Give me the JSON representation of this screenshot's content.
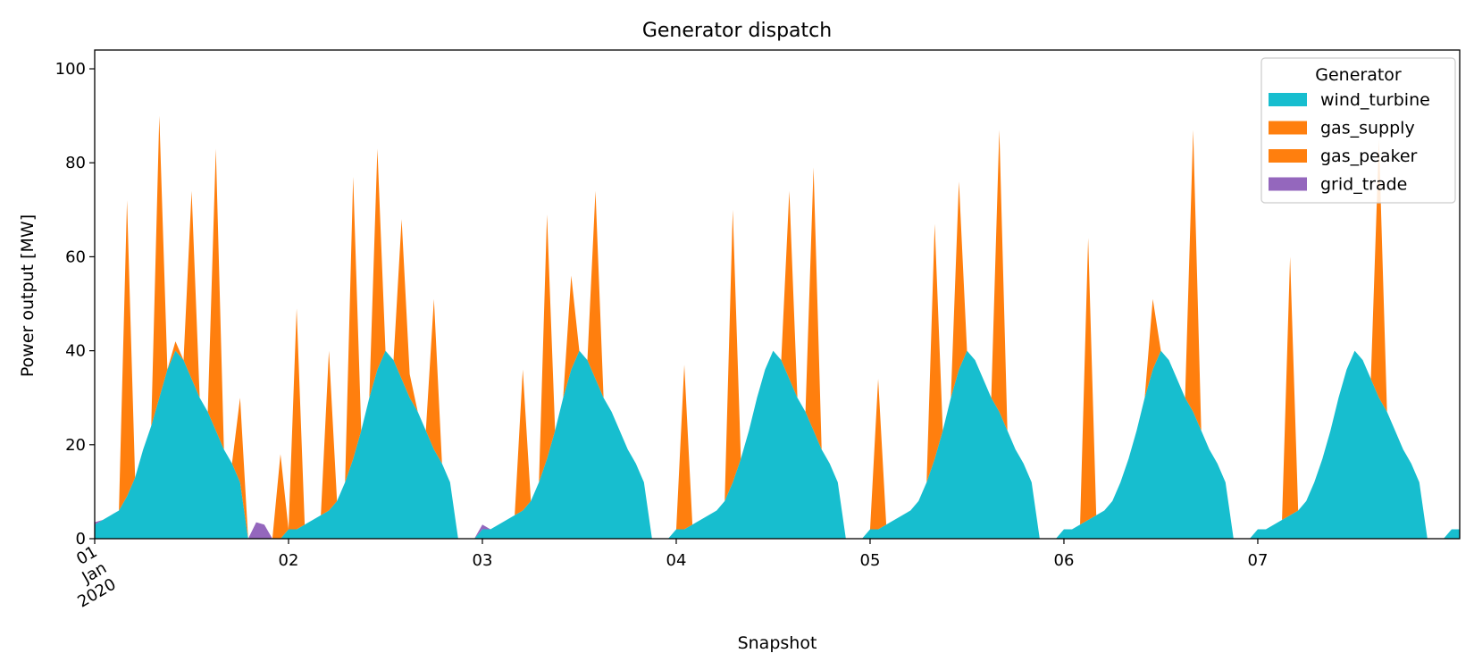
{
  "chart_data": {
    "type": "area",
    "stacked": true,
    "title": "Generator dispatch",
    "xlabel": "Snapshot",
    "ylabel": "Power output [MW]",
    "ylim": [
      0,
      104
    ],
    "yticks": [
      0,
      20,
      40,
      60,
      80,
      100
    ],
    "xticks": [
      {
        "hour": 0,
        "label": "01\nJan\n2020"
      },
      {
        "hour": 24,
        "label": "02"
      },
      {
        "hour": 48,
        "label": "03"
      },
      {
        "hour": 72,
        "label": "04"
      },
      {
        "hour": 96,
        "label": "05"
      },
      {
        "hour": 120,
        "label": "06"
      },
      {
        "hour": 144,
        "label": "07"
      }
    ],
    "x_start": "2020-01-01 00:00",
    "x_end": "2020-01-07 23:00",
    "x_step_hours": 1,
    "grid": false,
    "legend": {
      "title": "Generator",
      "position": "top-right"
    },
    "series": [
      {
        "name": "wind_turbine",
        "color": "#17becf",
        "values": [
          3,
          4,
          5,
          6,
          9,
          13,
          19,
          24,
          30,
          36,
          40,
          38,
          34,
          30,
          27,
          23,
          19,
          16,
          12,
          0,
          0,
          0,
          0,
          0,
          2,
          2,
          3,
          4,
          5,
          6,
          8,
          12,
          17,
          23,
          30,
          36,
          40,
          38,
          34,
          30,
          27,
          23,
          19,
          16,
          12,
          0,
          0,
          0,
          2,
          2,
          3,
          4,
          5,
          6,
          8,
          12,
          17,
          23,
          30,
          36,
          40,
          38,
          34,
          30,
          27,
          23,
          19,
          16,
          12,
          0,
          0,
          0,
          2,
          2,
          3,
          4,
          5,
          6,
          8,
          12,
          17,
          23,
          30,
          36,
          40,
          38,
          34,
          30,
          27,
          23,
          19,
          16,
          12,
          0,
          0,
          0,
          2,
          2,
          3,
          4,
          5,
          6,
          8,
          12,
          17,
          23,
          30,
          36,
          40,
          38,
          34,
          30,
          27,
          23,
          19,
          16,
          12,
          0,
          0,
          0,
          2,
          2,
          3,
          4,
          5,
          6,
          8,
          12,
          17,
          23,
          30,
          36,
          40,
          38,
          34,
          30,
          27,
          23,
          19,
          16,
          12,
          0,
          0,
          0,
          2,
          2,
          3,
          4,
          5,
          6,
          8,
          12,
          17,
          23,
          30,
          36,
          40,
          38,
          34,
          30,
          27,
          23,
          19,
          16,
          12,
          0,
          0,
          0,
          2,
          2
        ]
      },
      {
        "name": "gas_supply",
        "color": "#ff7f0e",
        "values": [
          0,
          0,
          0,
          0,
          0,
          0,
          0,
          0,
          0,
          0,
          0,
          0,
          0,
          0,
          0,
          0,
          0,
          0,
          0,
          0,
          0,
          0,
          0,
          0,
          0,
          0,
          0,
          0,
          0,
          0,
          0,
          0,
          0,
          0,
          0,
          0,
          0,
          0,
          0,
          0,
          0,
          0,
          0,
          0,
          0,
          0,
          0,
          0,
          0,
          0,
          0,
          0,
          0,
          0,
          0,
          0,
          0,
          0,
          0,
          0,
          0,
          0,
          0,
          0,
          0,
          0,
          0,
          0,
          0,
          0,
          0,
          0,
          0,
          0,
          0,
          0,
          0,
          0,
          0,
          0,
          0,
          0,
          0,
          0,
          0,
          0,
          0,
          0,
          0,
          0,
          0,
          0,
          0,
          0,
          0,
          0,
          0,
          0,
          0,
          0,
          0,
          0,
          0,
          0,
          0,
          0,
          0,
          0,
          0,
          0,
          0,
          0,
          0,
          0,
          0,
          0,
          0,
          0,
          0,
          0,
          0,
          0,
          0,
          0,
          0,
          0,
          0,
          0,
          0,
          0,
          0,
          0,
          0,
          0,
          0,
          0,
          0,
          0,
          0,
          0,
          0,
          0,
          0,
          0,
          0,
          0,
          0,
          0,
          0,
          0,
          0,
          0,
          0,
          0,
          0,
          0,
          0,
          0,
          0,
          0,
          0,
          0,
          0,
          0,
          0,
          0,
          0,
          0
        ]
      },
      {
        "name": "gas_peaker",
        "color": "#ff7f0e",
        "values": [
          0,
          0,
          0,
          0,
          63,
          0,
          0,
          0,
          60,
          0,
          2,
          0,
          40,
          0,
          0,
          60,
          0,
          0,
          18,
          0,
          0,
          0,
          0,
          18,
          0,
          47,
          0,
          0,
          0,
          34,
          0,
          0,
          60,
          0,
          0,
          47,
          0,
          0,
          34,
          5,
          0,
          0,
          32,
          0,
          0,
          0,
          0,
          0,
          0,
          0,
          0,
          0,
          0,
          30,
          0,
          0,
          52,
          0,
          0,
          20,
          0,
          0,
          40,
          0,
          0,
          0,
          0,
          0,
          0,
          0,
          0,
          0,
          0,
          35,
          0,
          0,
          0,
          0,
          0,
          58,
          0,
          0,
          0,
          0,
          0,
          0,
          40,
          0,
          0,
          56,
          0,
          0,
          0,
          0,
          0,
          0,
          0,
          32,
          0,
          0,
          0,
          0,
          0,
          0,
          50,
          0,
          0,
          40,
          0,
          0,
          0,
          0,
          60,
          0,
          0,
          0,
          0,
          0,
          0,
          0,
          0,
          0,
          0,
          60,
          0,
          0,
          0,
          0,
          0,
          0,
          0,
          15,
          0,
          0,
          0,
          0,
          60,
          0,
          0,
          0,
          0,
          0,
          0,
          0,
          0,
          0,
          0,
          0,
          55,
          0,
          0,
          0,
          0,
          0,
          0,
          0,
          0,
          0,
          0,
          55,
          0,
          0,
          0,
          0,
          0,
          0,
          0
        ]
      },
      {
        "name": "grid_trade",
        "color": "#9467bd",
        "values": [
          0.5,
          0,
          0,
          0,
          0,
          0,
          0,
          0,
          0,
          0,
          0,
          0,
          0,
          0,
          0,
          0,
          0,
          0,
          0,
          0,
          3.5,
          3,
          0,
          0,
          0,
          0,
          0,
          0,
          0,
          0,
          0,
          0,
          0,
          0,
          0,
          0,
          0,
          0,
          0,
          0,
          0,
          0,
          0,
          0,
          0,
          0,
          0,
          0,
          1,
          0,
          0,
          0,
          0,
          0,
          0,
          0,
          0,
          0,
          0,
          0,
          0,
          0,
          0,
          0,
          0,
          0,
          0,
          0,
          0,
          0,
          0,
          0,
          0,
          0,
          0,
          0,
          0,
          0,
          0,
          0,
          0,
          0,
          0,
          0,
          0,
          0,
          0,
          0,
          0,
          0,
          0,
          0,
          0,
          0,
          0,
          0,
          0,
          0,
          0,
          0,
          0,
          0,
          0,
          0,
          0,
          0,
          0,
          0,
          0,
          0,
          0,
          0,
          0,
          0,
          0,
          0,
          0,
          0,
          0,
          0,
          0,
          0,
          0,
          0,
          0,
          0,
          0,
          0,
          0,
          0,
          0,
          0,
          0,
          0,
          0,
          0,
          0,
          0,
          0,
          0,
          0,
          0,
          0,
          0,
          0,
          0,
          0,
          0,
          0,
          0,
          0,
          0,
          0,
          0,
          0,
          0,
          0,
          0,
          0,
          0,
          0,
          0,
          0,
          0,
          0,
          0,
          0,
          0
        ]
      }
    ]
  }
}
